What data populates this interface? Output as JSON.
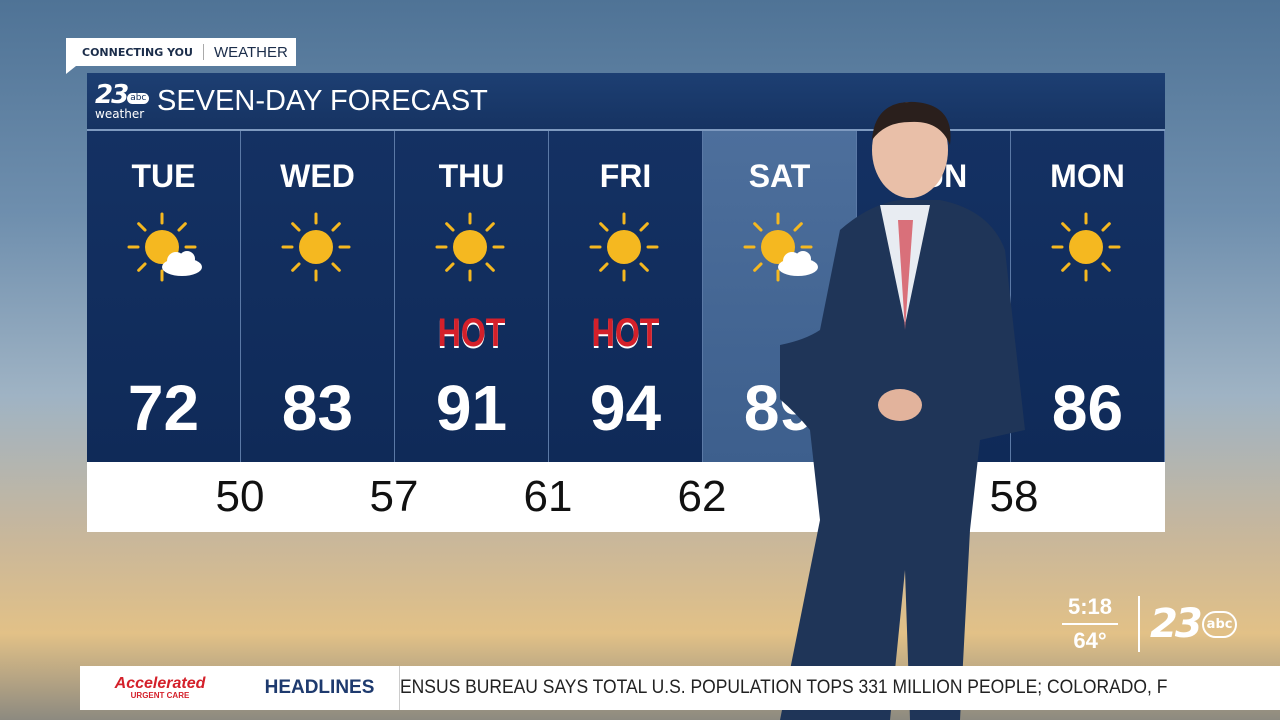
{
  "tag": {
    "left": "CONNECTING YOU",
    "right": "WEATHER"
  },
  "board": {
    "logo_number": "23",
    "logo_network": "abc",
    "logo_sub": "weather",
    "title": "SEVEN-DAY FORECAST",
    "days": [
      {
        "day": "TUE",
        "icon": "sun-cloud-icon",
        "hot": "",
        "high": "72"
      },
      {
        "day": "WED",
        "icon": "sun-icon",
        "hot": "",
        "high": "83"
      },
      {
        "day": "THU",
        "icon": "sun-icon",
        "hot": "HOT",
        "high": "91"
      },
      {
        "day": "FRI",
        "icon": "sun-icon",
        "hot": "HOT",
        "high": "94"
      },
      {
        "day": "SAT",
        "icon": "sun-cloud-icon",
        "hot": "",
        "high": "89"
      },
      {
        "day": "SUN",
        "icon": "",
        "hot": "",
        "high": ""
      },
      {
        "day": "MON",
        "icon": "sun-icon",
        "hot": "",
        "high": "86"
      }
    ],
    "lows": [
      "50",
      "57",
      "61",
      "62",
      "",
      "",
      "58"
    ]
  },
  "clock": {
    "time": "5:18",
    "temp": "64°"
  },
  "station_logo": {
    "number": "23",
    "network": "abc"
  },
  "ticker": {
    "sponsor": "Accelerated",
    "sponsor_sub": "URGENT CARE",
    "label": "HEADLINES",
    "text": "ENSUS BUREAU SAYS TOTAL U.S. POPULATION TOPS 331 MILLION PEOPLE; COLORADO, F"
  },
  "colors": {
    "navy": "#0f2a58",
    "sat_column": "#4d6f9c",
    "hot": "#d4202a",
    "sun": "#f5b820"
  }
}
